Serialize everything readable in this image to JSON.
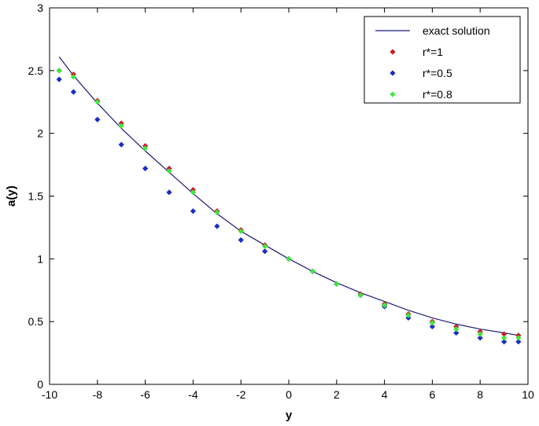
{
  "chart_data": {
    "type": "line",
    "xlabel": "y",
    "ylabel": "a(y)",
    "xlim": [
      -10,
      10
    ],
    "ylim": [
      0,
      3
    ],
    "xticks": [
      "-10",
      "-8",
      "-6",
      "-4",
      "-2",
      "0",
      "2",
      "4",
      "6",
      "8",
      "10"
    ],
    "yticks": [
      "0",
      "0.5",
      "1",
      "1.5",
      "2",
      "2.5",
      "3"
    ],
    "grid": false,
    "legend_position": "top-right",
    "series": [
      {
        "name": "exact solution",
        "style": "line",
        "color": "#1c1c7a",
        "x": [
          -9.6,
          -9.0,
          -8.0,
          -7.0,
          -6.0,
          -5.0,
          -4.0,
          -3.0,
          -2.0,
          -1.0,
          0.0,
          1.0,
          2.0,
          3.0,
          4.0,
          5.0,
          6.0,
          7.0,
          8.0,
          9.0,
          9.6
        ],
        "y": [
          2.61,
          2.46,
          2.24,
          2.04,
          1.86,
          1.69,
          1.52,
          1.36,
          1.22,
          1.11,
          1.0,
          0.9,
          0.81,
          0.73,
          0.66,
          0.59,
          0.53,
          0.48,
          0.44,
          0.41,
          0.39
        ]
      },
      {
        "name": "r*=1",
        "style": "markers",
        "color": "#c81e1e",
        "x": [
          -9.6,
          -9.0,
          -8.0,
          -7.0,
          -6.0,
          -5.0,
          -4.0,
          -3.0,
          -2.0,
          -1.0,
          0.0,
          1.0,
          2.0,
          3.0,
          4.0,
          5.0,
          6.0,
          7.0,
          8.0,
          9.0,
          9.6
        ],
        "y": [
          2.5,
          2.47,
          2.26,
          2.08,
          1.9,
          1.72,
          1.55,
          1.38,
          1.23,
          1.11,
          1.0,
          0.9,
          0.8,
          0.72,
          0.64,
          0.56,
          0.5,
          0.46,
          0.42,
          0.4,
          0.39
        ]
      },
      {
        "name": "r*=0.5",
        "style": "markers",
        "color": "#1a2cc8",
        "x": [
          -9.6,
          -9.0,
          -8.0,
          -7.0,
          -6.0,
          -5.0,
          -4.0,
          -3.0,
          -2.0,
          -1.0,
          0.0,
          1.0,
          2.0,
          3.0,
          4.0,
          5.0,
          6.0,
          7.0,
          8.0,
          9.0,
          9.6
        ],
        "y": [
          2.43,
          2.33,
          2.11,
          1.91,
          1.72,
          1.53,
          1.38,
          1.26,
          1.15,
          1.06,
          1.0,
          0.9,
          0.8,
          0.71,
          0.62,
          0.53,
          0.46,
          0.41,
          0.37,
          0.34,
          0.34
        ]
      },
      {
        "name": "r*=0.8",
        "style": "markers",
        "color": "#3ce83c",
        "x": [
          -9.6,
          -9.0,
          -8.0,
          -7.0,
          -6.0,
          -5.0,
          -4.0,
          -3.0,
          -2.0,
          -1.0,
          0.0,
          1.0,
          2.0,
          3.0,
          4.0,
          5.0,
          6.0,
          7.0,
          8.0,
          9.0,
          9.6
        ],
        "y": [
          2.5,
          2.45,
          2.25,
          2.06,
          1.88,
          1.7,
          1.53,
          1.37,
          1.22,
          1.1,
          1.0,
          0.9,
          0.8,
          0.71,
          0.63,
          0.55,
          0.49,
          0.44,
          0.4,
          0.37,
          0.37
        ]
      }
    ]
  }
}
